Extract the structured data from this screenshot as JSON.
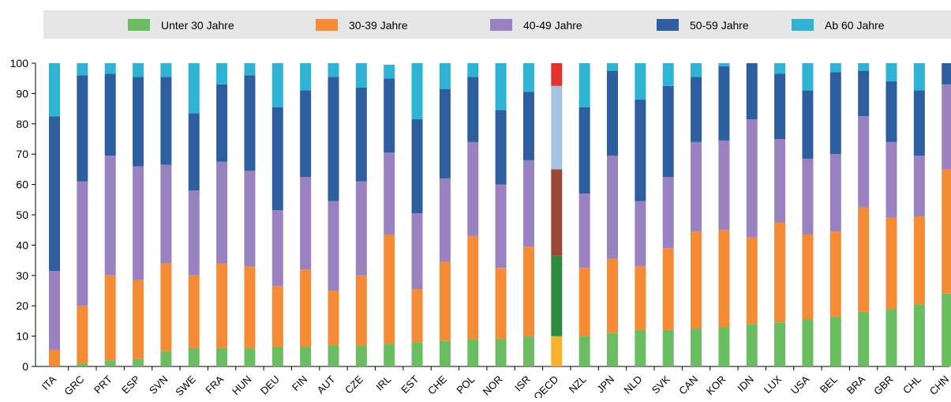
{
  "chart_data": {
    "type": "bar",
    "stacked": true,
    "categories": [
      "ITA",
      "GRC",
      "PRT",
      "ESP",
      "SVN",
      "SWE",
      "FRA",
      "HUN",
      "DEU",
      "FIN",
      "AUT",
      "CZE",
      "IRL",
      "EST",
      "CHE",
      "POL",
      "NOR",
      "ISR",
      "OECD",
      "NZL",
      "JPN",
      "NLD",
      "SVK",
      "CAN",
      "KOR",
      "IDN",
      "LUX",
      "USA",
      "BEL",
      "BRA",
      "GBR",
      "CHL",
      "CHN"
    ],
    "series": [
      {
        "name": "Unter 30 Jahre",
        "color": "#6bbd62",
        "values": [
          0,
          1,
          2,
          2.5,
          5,
          6,
          6,
          6,
          6.5,
          6.5,
          7,
          7,
          7.5,
          8,
          8.5,
          9,
          9,
          10,
          10,
          10,
          11,
          12,
          12,
          12.5,
          13,
          14,
          14.5,
          15.5,
          16.5,
          18,
          19,
          20.5,
          24
        ]
      },
      {
        "name": "30-39 Jahre",
        "color": "#f68b35",
        "values": [
          5.5,
          19,
          28,
          26,
          29,
          24,
          28,
          27,
          20,
          25.5,
          18,
          23,
          36,
          17.5,
          26,
          34,
          23.5,
          29.5,
          26.5,
          22.5,
          24.5,
          21,
          27,
          32,
          32,
          28.5,
          33,
          28,
          28,
          34.5,
          30,
          29,
          41
        ]
      },
      {
        "name": "40-49 Jahre",
        "color": "#9a82c0",
        "values": [
          26,
          41,
          39.5,
          37.5,
          32.5,
          28,
          33.5,
          31.5,
          25,
          30.5,
          29.5,
          31,
          27,
          25,
          27.5,
          31,
          27.5,
          28.5,
          28.5,
          24.5,
          34,
          21.5,
          23.5,
          29.5,
          29.5,
          39,
          27.5,
          25,
          25.5,
          30,
          25,
          20,
          28
        ]
      },
      {
        "name": "50-59 Jahre",
        "color": "#2d5fa0",
        "values": [
          51,
          35,
          27,
          29.5,
          29,
          25.5,
          25.5,
          31.5,
          34,
          28.5,
          41,
          31,
          24.5,
          31,
          29.5,
          21.5,
          24.5,
          22.5,
          27.5,
          28.5,
          28,
          33.5,
          30,
          21.5,
          24.5,
          18.5,
          21.5,
          22.5,
          27,
          15,
          20,
          21.5,
          7
        ]
      },
      {
        "name": "Ab 60 Jahre",
        "color": "#2fb3d4",
        "values": [
          17.5,
          4,
          3.5,
          4.5,
          4.5,
          16.5,
          7,
          4,
          14.5,
          9,
          4.5,
          8,
          4.5,
          18.5,
          8.5,
          4.5,
          15.5,
          9.5,
          7.5,
          14.5,
          2.5,
          12,
          7.5,
          4.5,
          1,
          0,
          3.5,
          9,
          3,
          2.5,
          6,
          9,
          0
        ]
      }
    ],
    "highlight": {
      "category": "OECD",
      "colors": [
        "#f6b330",
        "#2e8a40",
        "#9a4638",
        "#a4c3e0",
        "#e0332f"
      ]
    },
    "ylim": [
      0,
      100
    ],
    "yticks": [
      0,
      10,
      20,
      30,
      40,
      50,
      60,
      70,
      80,
      90,
      100
    ],
    "xlabel": "",
    "ylabel": "",
    "title": "",
    "grid": false,
    "legend_position": "top"
  }
}
